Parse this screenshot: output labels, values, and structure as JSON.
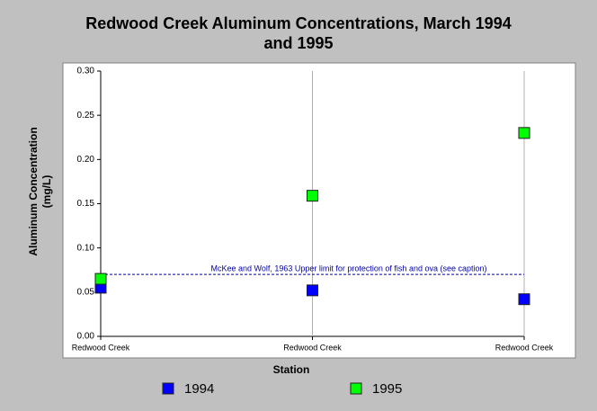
{
  "chart_data": {
    "type": "scatter",
    "title": "Redwood Creek Aluminum Concentrations, March 1994 and 1995",
    "x_label": "Station",
    "y_label": "Aluminum Concentration (mg/L)",
    "categories": [
      "Redwood Creek",
      "Redwood Creek",
      "Redwood Creek"
    ],
    "series": [
      {
        "name": "1994",
        "color": "#0000ff",
        "values": [
          0.055,
          0.052,
          0.042
        ]
      },
      {
        "name": "1995",
        "color": "#00ff00",
        "values": [
          0.065,
          0.159,
          0.23
        ]
      }
    ],
    "ylim": [
      0,
      0.3
    ],
    "yticks": [
      {
        "value": 0,
        "label": "0.00"
      },
      0.05,
      {
        "value": 0.1,
        "label": "0.10"
      },
      0.15,
      {
        "value": 0.2,
        "label": "0.20"
      },
      0.25,
      {
        "value": 0.3,
        "label": "0.30"
      }
    ],
    "reference_lines": [
      {
        "value": 0.07,
        "label": "McKee and Wolf, 1963 Upper limit for protection of fish and ova (see caption)",
        "color": "#0000aa"
      }
    ],
    "legend": "bottom"
  }
}
